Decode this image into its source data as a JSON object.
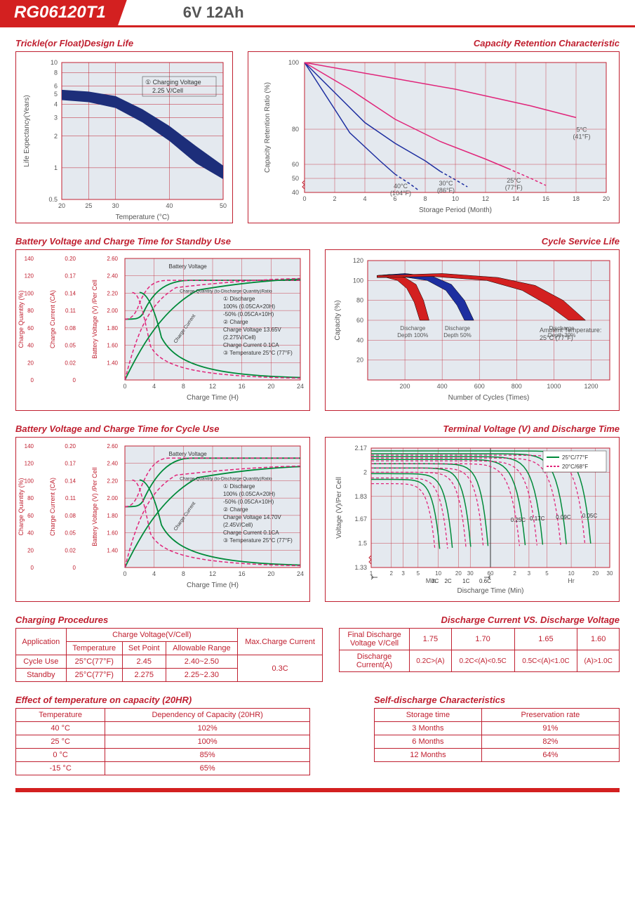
{
  "header": {
    "product": "RG06120T1",
    "spec": "6V  12Ah"
  },
  "charts": {
    "trickle": {
      "title": "Trickle(or Float)Design Life",
      "xlabel": "Temperature (°C)",
      "ylabel": "Life Expectancy(Years)",
      "xticks": [
        "20",
        "25",
        "30",
        "40",
        "50"
      ],
      "yticks": [
        "0.5",
        "1",
        "2",
        "3",
        "4",
        "5",
        "6",
        "8",
        "10"
      ],
      "annotation": "① Charging Voltage\n   2.25 V/Cell",
      "band_upper": [
        [
          20,
          5.5
        ],
        [
          25,
          5.3
        ],
        [
          30,
          4.8
        ],
        [
          35,
          3.6
        ],
        [
          40,
          2.5
        ],
        [
          45,
          1.6
        ],
        [
          50,
          1.05
        ]
      ],
      "band_lower": [
        [
          20,
          4.4
        ],
        [
          25,
          4.2
        ],
        [
          30,
          3.7
        ],
        [
          35,
          2.7
        ],
        [
          40,
          1.8
        ],
        [
          45,
          1.1
        ],
        [
          50,
          0.78
        ]
      ],
      "band_color": "#1d2e7a",
      "grid_color": "#c02030",
      "bg": "#e4e9ef"
    },
    "retention": {
      "title": "Capacity Retention  Characteristic",
      "xlabel": "Storage Period (Month)",
      "ylabel": "Capacity Retention Ratio (%)",
      "xticks": [
        "0",
        "2",
        "4",
        "6",
        "8",
        "10",
        "12",
        "14",
        "16",
        "18",
        "20"
      ],
      "yticks": [
        "40",
        "50",
        "60",
        "80",
        "100"
      ],
      "series": [
        {
          "label": "40°C\n(104°F)",
          "color": "#1d2ea0",
          "dash": false,
          "pts": [
            [
              0,
              100
            ],
            [
              1,
              93
            ],
            [
              2,
              86
            ],
            [
              3,
              78
            ],
            [
              4,
              70
            ],
            [
              5,
              62
            ],
            [
              6,
              53
            ]
          ],
          "dash_tail": [
            [
              6,
              53
            ],
            [
              7,
              46
            ],
            [
              7.5,
              42
            ]
          ]
        },
        {
          "label": "30°C\n(86°F)",
          "color": "#1d2ea0",
          "dash": false,
          "pts": [
            [
              0,
              100
            ],
            [
              2,
              91
            ],
            [
              4,
              82
            ],
            [
              6,
              72
            ],
            [
              8,
              62
            ],
            [
              9,
              55
            ]
          ],
          "dash_tail": [
            [
              9,
              55
            ],
            [
              10,
              49
            ],
            [
              10.8,
              44
            ]
          ]
        },
        {
          "label": "25°C\n(77°F)",
          "color": "#e0257a",
          "dash": false,
          "pts": [
            [
              0,
              100
            ],
            [
              3,
              92
            ],
            [
              6,
              83
            ],
            [
              9,
              73
            ],
            [
              12,
              63
            ],
            [
              13.5,
              57
            ]
          ],
          "dash_tail": [
            [
              13.5,
              57
            ],
            [
              15,
              50
            ],
            [
              16,
              45
            ]
          ]
        },
        {
          "label": "5°C\n(41°F)",
          "color": "#e0257a",
          "dash": false,
          "pts": [
            [
              0,
              100
            ],
            [
              5,
              96
            ],
            [
              10,
              92
            ],
            [
              15,
              87
            ],
            [
              18,
              83.5
            ]
          ]
        }
      ],
      "grid_color": "#c02030",
      "bg": "#e4e9ef"
    },
    "standby": {
      "title": "Battery Voltage and Charge Time for Standby Use",
      "xlabel": "Charge Time (H)",
      "y1": "Charge Quantity (%)",
      "y2": "Charge Current (CA)",
      "y3": "Battery Voltage (V) /Per Cell",
      "xticks": [
        "0",
        "4",
        "8",
        "12",
        "16",
        "20",
        "24"
      ],
      "y1_ticks": [
        "0",
        "20",
        "40",
        "60",
        "80",
        "100",
        "120",
        "140"
      ],
      "y2_ticks": [
        "0",
        "0.02",
        "0.05",
        "0.08",
        "0.11",
        "0.14",
        "0.17",
        "0.20"
      ],
      "y3_ticks": [
        "1.40",
        "1.60",
        "1.80",
        "2.00",
        "2.20",
        "2.40",
        "2.60"
      ],
      "notes": [
        "① Discharge",
        "   100% (0.05CA×20H)",
        "   -50% (0.05CA×10H)",
        "② Charge",
        "   Charge Voltage 13.65V",
        "   (2.275V/Cell)",
        "   Charge Current 0.1CA",
        "③ Temperature 25°C (77°F)"
      ],
      "labels": {
        "bv": "Battery Voltage",
        "cq": "Charge Quantity (to-Discharge Quantity)Ratio",
        "cc": "Charge Current"
      },
      "bg": "#e4e9ef",
      "grid_color": "#c02030"
    },
    "cycle_life": {
      "title": "Cycle Service Life",
      "xlabel": "Number of Cycles (Times)",
      "ylabel": "Capacity (%)",
      "xticks": [
        "200",
        "400",
        "600",
        "800",
        "1000",
        "1200"
      ],
      "yticks": [
        "20",
        "40",
        "60",
        "80",
        "100",
        "120"
      ],
      "regions": [
        {
          "label": "Discharge\nDepth 100%",
          "color": "#d32020",
          "upper": [
            [
              50,
              105
            ],
            [
              120,
              106
            ],
            [
              200,
              103
            ],
            [
              260,
              96
            ],
            [
              300,
              80
            ],
            [
              330,
              60
            ]
          ],
          "lower": [
            [
              50,
              103
            ],
            [
              100,
              103
            ],
            [
              160,
              100
            ],
            [
              210,
              92
            ],
            [
              250,
              78
            ],
            [
              280,
              60
            ]
          ]
        },
        {
          "label": "Discharge\nDepth 50%",
          "color": "#1d2ea0",
          "upper": [
            [
              50,
              105
            ],
            [
              200,
              107
            ],
            [
              350,
              104
            ],
            [
              450,
              96
            ],
            [
              520,
              80
            ],
            [
              570,
              60
            ]
          ],
          "lower": [
            [
              50,
              103
            ],
            [
              180,
              104
            ],
            [
              320,
              100
            ],
            [
              420,
              90
            ],
            [
              480,
              75
            ],
            [
              520,
              60
            ]
          ]
        },
        {
          "label": "Discharge\nDepth 30%",
          "color": "#d32020",
          "upper": [
            [
              50,
              105
            ],
            [
              400,
              107
            ],
            [
              700,
              103
            ],
            [
              900,
              95
            ],
            [
              1050,
              80
            ],
            [
              1170,
              60
            ]
          ],
          "lower": [
            [
              50,
              103
            ],
            [
              350,
              104
            ],
            [
              640,
              100
            ],
            [
              830,
              90
            ],
            [
              970,
              75
            ],
            [
              1080,
              60
            ]
          ]
        }
      ],
      "ambient": "Ambient Temperature:\n25°C (77°F)",
      "bg": "#e4e9ef",
      "grid_color": "#c02030"
    },
    "cycle_use": {
      "title": "Battery Voltage and Charge Time for Cycle Use",
      "xlabel": "Charge Time (H)",
      "y1": "Charge Quantity (%)",
      "y2": "Charge Current (CA)",
      "y3": "Battery Voltage (V) /Per Cell",
      "xticks": [
        "0",
        "4",
        "8",
        "12",
        "16",
        "20",
        "24"
      ],
      "y1_ticks": [
        "0",
        "20",
        "40",
        "60",
        "80",
        "100",
        "120",
        "140"
      ],
      "y2_ticks": [
        "0",
        "0.02",
        "0.05",
        "0.08",
        "0.11",
        "0.14",
        "0.17",
        "0.20"
      ],
      "y3_ticks": [
        "1.40",
        "1.60",
        "1.80",
        "2.00",
        "2.20",
        "2.40",
        "2.60"
      ],
      "notes": [
        "① Discharge",
        "   100% (0.05CA×20H)",
        "   -50% (0.05CA×10H)",
        "② Charge",
        "   Charge Voltage 14.70V",
        "   (2.45V/Cell)",
        "   Charge Current 0.1CA",
        "③ Temperature 25°C (77°F)"
      ],
      "labels": {
        "bv": "Battery Voltage",
        "cq": "Charge Quantity (to-Discharge Quantity)Ratio",
        "cc": "Charge Current"
      },
      "bg": "#e4e9ef",
      "grid_color": "#c02030"
    },
    "terminal": {
      "title": "Terminal Voltage (V) and Discharge Time",
      "xlabel": "Discharge Time (Min)",
      "ylabel": "Voltage (V)/Per Cell",
      "xticks_min": [
        "1",
        "2",
        "3",
        "5",
        "10",
        "20",
        "30",
        "60"
      ],
      "xticks_hr": [
        "2",
        "3",
        "5",
        "10",
        "20",
        "30"
      ],
      "yticks": [
        "1.33",
        "1.5",
        "1.67",
        "1.83",
        "2.0",
        "2.17"
      ],
      "legend": [
        {
          "label": "25°C/77°F",
          "color": "#008a3a"
        },
        {
          "label": "20°C/68°F",
          "color": "#e0257a"
        }
      ],
      "curve_labels": [
        "3C",
        "2C",
        "1C",
        "0.6C",
        "0.25C",
        "0.17C",
        "0.09C",
        "0.05C"
      ],
      "xsection_min": "Min",
      "xsection_hr": "Hr",
      "bg": "#e4e9ef",
      "grid_color": "#c02030"
    }
  },
  "tables": {
    "charging": {
      "title": "Charging Procedures",
      "cols": [
        "Application",
        "Charge Voltage(V/Cell)",
        "",
        "",
        "Max.Charge Current"
      ],
      "sub": [
        "Temperature",
        "Set Point",
        "Allowable Range"
      ],
      "rows": [
        [
          "Cycle Use",
          "25°C(77°F)",
          "2.45",
          "2.40~2.50"
        ],
        [
          "Standby",
          "25°C(77°F)",
          "2.275",
          "2.25~2.30"
        ]
      ],
      "max_current": "0.3C"
    },
    "discharge_voltage": {
      "title": "Discharge Current VS. Discharge Voltage",
      "h1": "Final Discharge\nVoltage V/Cell",
      "h2": "Discharge\nCurrent(A)",
      "v": [
        "1.75",
        "1.70",
        "1.65",
        "1.60"
      ],
      "a": [
        "0.2C>(A)",
        "0.2C<(A)<0.5C",
        "0.5C<(A)<1.0C",
        "(A)>1.0C"
      ]
    },
    "temp_capacity": {
      "title": "Effect of temperature on capacity (20HR)",
      "cols": [
        "Temperature",
        "Dependency of Capacity (20HR)"
      ],
      "rows": [
        [
          "40 °C",
          "102%"
        ],
        [
          "25 °C",
          "100%"
        ],
        [
          "0 °C",
          "85%"
        ],
        [
          "-15 °C",
          "65%"
        ]
      ]
    },
    "self_discharge": {
      "title": "Self-discharge Characteristics",
      "cols": [
        "Storage time",
        "Preservation rate"
      ],
      "rows": [
        [
          "3 Months",
          "91%"
        ],
        [
          "6 Months",
          "82%"
        ],
        [
          "12 Months",
          "64%"
        ]
      ]
    }
  }
}
